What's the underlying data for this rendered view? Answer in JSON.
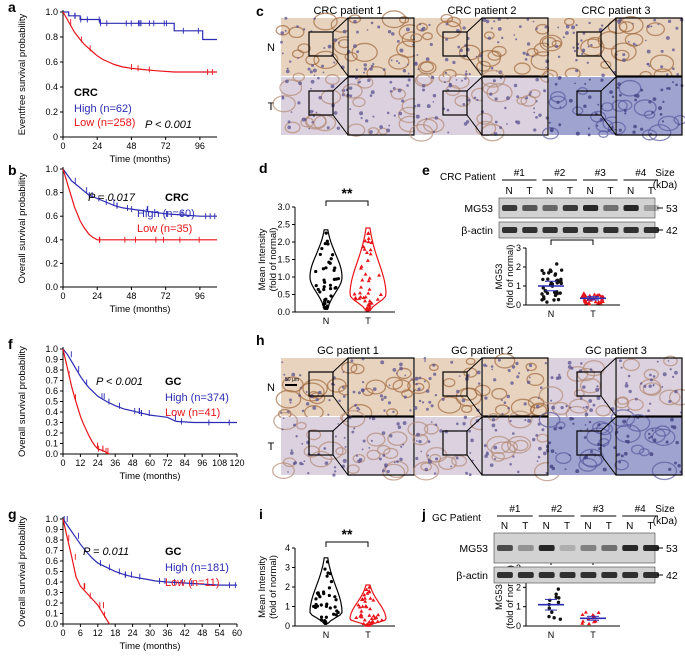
{
  "colors": {
    "high": "#2b2bb4",
    "low": "#e8141a",
    "black": "#000000",
    "blotBg": "#d2d2d2",
    "band": "#1e1e1e",
    "dotT": "#e8141a",
    "dotN": "#111111",
    "meanN": "#2b2bb4"
  },
  "chart_data": [
    {
      "id": "a",
      "type": "line",
      "panel_label": "a",
      "ylabel": "Eventfree survival probability",
      "xlabel": "Time (months)",
      "xlim": [
        0,
        108
      ],
      "ylim": [
        0,
        1.0
      ],
      "xticks": [
        "0",
        "24",
        "48",
        "72",
        "96"
      ],
      "yticks": [
        "0",
        "0.2",
        "0.4",
        "0.6",
        "0.8",
        "1.0"
      ],
      "group_label": "CRC",
      "pvalue": "P  <  0.001",
      "series": [
        {
          "name": "High (n=62)",
          "color_key": "high",
          "points": [
            [
              0,
              1
            ],
            [
              4,
              1
            ],
            [
              4,
              0.97
            ],
            [
              12,
              0.97
            ],
            [
              12,
              0.94
            ],
            [
              26,
              0.94
            ],
            [
              26,
              0.91
            ],
            [
              78,
              0.91
            ],
            [
              78,
              0.85
            ],
            [
              98,
              0.85
            ],
            [
              98,
              0.78
            ],
            [
              108,
              0.78
            ]
          ]
        },
        {
          "name": "Low (n=258)",
          "color_key": "low",
          "points": [
            [
              0,
              1
            ],
            [
              2,
              0.96
            ],
            [
              4,
              0.92
            ],
            [
              6,
              0.88
            ],
            [
              8,
              0.84
            ],
            [
              10,
              0.81
            ],
            [
              12,
              0.78
            ],
            [
              15,
              0.74
            ],
            [
              18,
              0.71
            ],
            [
              21,
              0.68
            ],
            [
              24,
              0.65
            ],
            [
              28,
              0.62
            ],
            [
              32,
              0.6
            ],
            [
              36,
              0.58
            ],
            [
              42,
              0.56
            ],
            [
              48,
              0.55
            ],
            [
              56,
              0.54
            ],
            [
              66,
              0.53
            ],
            [
              78,
              0.52
            ],
            [
              90,
              0.52
            ],
            [
              108,
              0.52
            ]
          ]
        }
      ],
      "legend_series": [
        "High (n=62)",
        "Low (n=258)"
      ]
    },
    {
      "id": "b",
      "type": "line",
      "panel_label": "b",
      "ylabel": "Overall survival probability",
      "xlabel": "Time (months)",
      "xlim": [
        0,
        108
      ],
      "ylim": [
        0,
        1.0
      ],
      "xticks": [
        "0",
        "24",
        "48",
        "72",
        "96"
      ],
      "yticks": [
        "0.0",
        "0.2",
        "0.4",
        "0.6",
        "0.8",
        "1.0"
      ],
      "group_label": "CRC",
      "pvalue": "P = 0.017",
      "series": [
        {
          "name": "High (n=60)",
          "color_key": "high",
          "points": [
            [
              0,
              1
            ],
            [
              3,
              0.95
            ],
            [
              6,
              0.9
            ],
            [
              10,
              0.86
            ],
            [
              14,
              0.82
            ],
            [
              18,
              0.78
            ],
            [
              24,
              0.75
            ],
            [
              30,
              0.72
            ],
            [
              36,
              0.69
            ],
            [
              42,
              0.67
            ],
            [
              48,
              0.66
            ],
            [
              60,
              0.64
            ],
            [
              72,
              0.62
            ],
            [
              84,
              0.61
            ],
            [
              96,
              0.6
            ],
            [
              108,
              0.6
            ]
          ]
        },
        {
          "name": "Low (n=35)",
          "color_key": "low",
          "points": [
            [
              0,
              1
            ],
            [
              2,
              0.92
            ],
            [
              4,
              0.84
            ],
            [
              6,
              0.76
            ],
            [
              8,
              0.68
            ],
            [
              10,
              0.62
            ],
            [
              12,
              0.56
            ],
            [
              15,
              0.5
            ],
            [
              18,
              0.45
            ],
            [
              21,
              0.42
            ],
            [
              24,
              0.4
            ],
            [
              108,
              0.4
            ]
          ]
        }
      ],
      "legend_series": [
        "High (n=60)",
        "Low (n=35)"
      ]
    },
    {
      "id": "d",
      "type": "violin",
      "panel_label": "d",
      "ylabel": "Mean Intensity",
      "ylabel2": "(fold of normal)",
      "categories": [
        "N",
        "T"
      ],
      "ylim": [
        0,
        3.0
      ],
      "yticks": [
        "0.0",
        "0.5",
        "1.0",
        "1.5",
        "2.0",
        "2.5",
        "3.0"
      ],
      "significance": "**"
    },
    {
      "id": "e_dot",
      "type": "scatter",
      "panel_label": "",
      "ylabel": "MG53",
      "ylabel2": "(fold of normal)",
      "categories": [
        "N",
        "T"
      ],
      "ylim": [
        0,
        3
      ],
      "yticks": [
        "0",
        "1",
        "2",
        "3"
      ],
      "means": [
        1.0,
        0.35
      ],
      "significance": "***"
    },
    {
      "id": "f",
      "type": "line",
      "panel_label": "f",
      "ylabel": "Overall survival probability",
      "xlabel": "Time (months)",
      "xlim": [
        0,
        120
      ],
      "ylim": [
        0,
        1.0
      ],
      "xticks": [
        "0",
        "12",
        "24",
        "36",
        "48",
        "60",
        "72",
        "84",
        "96",
        "108",
        "120"
      ],
      "yticks": [
        "0.0",
        "0.1",
        "0.2",
        "0.3",
        "0.4",
        "0.5",
        "0.6",
        "0.7",
        "0.8",
        "0.9",
        "1.0"
      ],
      "group_label": "GC",
      "pvalue": "P  <  0.001",
      "series": [
        {
          "name": "High (n=374)",
          "color_key": "high",
          "points": [
            [
              0,
              1
            ],
            [
              3,
              0.95
            ],
            [
              6,
              0.88
            ],
            [
              9,
              0.81
            ],
            [
              12,
              0.74
            ],
            [
              15,
              0.68
            ],
            [
              18,
              0.63
            ],
            [
              21,
              0.59
            ],
            [
              24,
              0.55
            ],
            [
              30,
              0.5
            ],
            [
              36,
              0.46
            ],
            [
              42,
              0.43
            ],
            [
              48,
              0.41
            ],
            [
              54,
              0.39
            ],
            [
              60,
              0.37
            ],
            [
              66,
              0.36
            ],
            [
              72,
              0.35
            ],
            [
              78,
              0.31
            ],
            [
              90,
              0.3
            ],
            [
              120,
              0.3
            ]
          ]
        },
        {
          "name": "Low (n=41)",
          "color_key": "low",
          "points": [
            [
              0,
              1
            ],
            [
              2,
              0.88
            ],
            [
              4,
              0.76
            ],
            [
              6,
              0.64
            ],
            [
              8,
              0.54
            ],
            [
              10,
              0.45
            ],
            [
              12,
              0.36
            ],
            [
              14,
              0.29
            ],
            [
              16,
              0.23
            ],
            [
              18,
              0.17
            ],
            [
              20,
              0.12
            ],
            [
              22,
              0.08
            ],
            [
              24,
              0.05
            ],
            [
              28,
              0.03
            ],
            [
              32,
              0.0
            ]
          ]
        }
      ],
      "legend_series": [
        "High (n=374)",
        "Low (n=41)"
      ]
    },
    {
      "id": "g",
      "type": "line",
      "panel_label": "g",
      "ylabel": "Overall survival probability",
      "xlabel": "Time (months)",
      "xlim": [
        0,
        60
      ],
      "ylim": [
        0,
        1.0
      ],
      "xticks": [
        "0",
        "6",
        "12",
        "18",
        "24",
        "30",
        "36",
        "42",
        "48",
        "54",
        "60"
      ],
      "yticks": [
        "0.0",
        "0.1",
        "0.2",
        "0.3",
        "0.4",
        "0.5",
        "0.6",
        "0.7",
        "0.8",
        "0.9",
        "1.0"
      ],
      "group_label": "GC",
      "pvalue": "P = 0.011",
      "series": [
        {
          "name": "High (n=181)",
          "color_key": "high",
          "points": [
            [
              0,
              1
            ],
            [
              2,
              0.92
            ],
            [
              4,
              0.84
            ],
            [
              6,
              0.76
            ],
            [
              8,
              0.69
            ],
            [
              10,
              0.63
            ],
            [
              12,
              0.58
            ],
            [
              15,
              0.54
            ],
            [
              18,
              0.5
            ],
            [
              21,
              0.47
            ],
            [
              24,
              0.45
            ],
            [
              28,
              0.43
            ],
            [
              32,
              0.41
            ],
            [
              36,
              0.4
            ],
            [
              42,
              0.39
            ],
            [
              48,
              0.38
            ],
            [
              54,
              0.37
            ],
            [
              60,
              0.37
            ]
          ]
        },
        {
          "name": "Low (n=11)",
          "color_key": "low",
          "points": [
            [
              0,
              1
            ],
            [
              1.5,
              0.82
            ],
            [
              3,
              0.64
            ],
            [
              4.5,
              0.45
            ],
            [
              6,
              0.36
            ],
            [
              9,
              0.27
            ],
            [
              12,
              0.18
            ],
            [
              14,
              0.09
            ],
            [
              16,
              0.0
            ]
          ]
        }
      ],
      "legend_series": [
        "High (n=181)",
        "Low (n=11)"
      ]
    },
    {
      "id": "i",
      "type": "violin",
      "panel_label": "i",
      "ylabel": "Mean Intensity",
      "ylabel2": "(fold of normal)",
      "categories": [
        "N",
        "T"
      ],
      "ylim": [
        0,
        4
      ],
      "yticks": [
        "0",
        "1",
        "2",
        "3",
        "4"
      ],
      "significance": "**"
    },
    {
      "id": "j_dot",
      "type": "scatter",
      "panel_label": "",
      "ylabel": "MG53",
      "ylabel2": "(fold of normal)",
      "categories": [
        "N",
        "T"
      ],
      "ylim": [
        0,
        3
      ],
      "yticks": [
        "0",
        "1",
        "2",
        "3"
      ],
      "means": [
        1.1,
        0.4
      ],
      "significance": "**"
    }
  ],
  "panel_c": {
    "label": "c",
    "patients": [
      "CRC patient 1",
      "CRC patient 2",
      "CRC patient 3"
    ],
    "row_labels": [
      "N",
      "T"
    ]
  },
  "panel_h": {
    "label": "h",
    "patients": [
      "GC patient 1",
      "GC patient 2",
      "GC patient 3"
    ],
    "row_labels": [
      "N",
      "T"
    ],
    "scale_bar": "50 µm"
  },
  "panel_e": {
    "label": "e",
    "cohort": "CRC Patient",
    "pairs": [
      "#1",
      "#2",
      "#3",
      "#4"
    ],
    "lanes": [
      "N",
      "T",
      "N",
      "T",
      "N",
      "T",
      "N",
      "T"
    ],
    "size_label": "Size",
    "size_unit": "(kDa)",
    "rows": [
      {
        "name": "MG53",
        "size": "53",
        "intensity": [
          0.85,
          0.7,
          0.6,
          0.85,
          0.95,
          0.55,
          0.95,
          0.3
        ]
      },
      {
        "name": "β-actin",
        "size": "42",
        "intensity": [
          0.9,
          0.9,
          0.9,
          0.9,
          0.9,
          0.9,
          0.9,
          0.9
        ]
      }
    ]
  },
  "panel_j": {
    "label": "j",
    "cohort": "GC Patient",
    "pairs": [
      "#1",
      "#2",
      "#3",
      "#4"
    ],
    "lanes": [
      "N",
      "T",
      "N",
      "T",
      "N",
      "T",
      "N",
      "T"
    ],
    "size_label": "Size",
    "size_unit": "(kDa)",
    "rows": [
      {
        "name": "MG53",
        "size": "53",
        "intensity": [
          0.75,
          0.35,
          0.95,
          0.2,
          0.45,
          0.55,
          0.95,
          0.95
        ]
      },
      {
        "name": "β-actin",
        "size": "42",
        "intensity": [
          0.9,
          0.9,
          0.9,
          0.9,
          0.9,
          0.9,
          0.9,
          0.9
        ]
      }
    ]
  }
}
